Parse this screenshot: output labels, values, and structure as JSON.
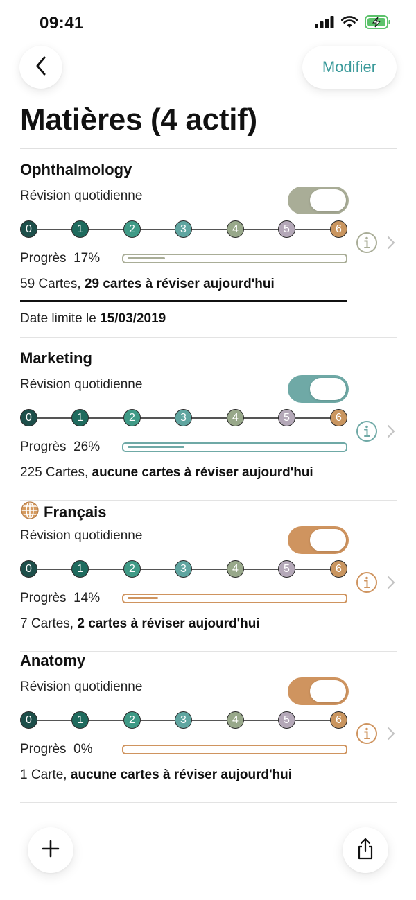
{
  "status_bar": {
    "time": "09:41"
  },
  "header": {
    "edit_label": "Modifier",
    "title": "Matières (4 actif)"
  },
  "labels": {
    "daily_review": "Révision quotidienne",
    "progress_prefix": "Progrès",
    "deadline_prefix": "Date limite le"
  },
  "steps": [
    "0",
    "1",
    "2",
    "3",
    "4",
    "5",
    "6"
  ],
  "step_colors": [
    "#1d4f4a",
    "#1f6b5e",
    "#3f9a86",
    "#5fa5a0",
    "#98a88a",
    "#b4a8b8",
    "#c9955f"
  ],
  "subjects": [
    {
      "name": "Ophthalmology",
      "has_globe": false,
      "accent": "#a9ad97",
      "progress_text": "17%",
      "progress": 0.17,
      "cards_count": "59 Cartes,",
      "cards_due": "29 cartes à réviser aujourd'hui",
      "deadline": "15/03/2019"
    },
    {
      "name": "Marketing",
      "has_globe": false,
      "accent": "#6fa9a6",
      "progress_text": "26%",
      "progress": 0.26,
      "cards_count": "225 Cartes,",
      "cards_due": "aucune cartes à réviser aujourd'hui",
      "deadline": null
    },
    {
      "name": "Français",
      "has_globe": true,
      "accent": "#cf945f",
      "progress_text": "14%",
      "progress": 0.14,
      "cards_count": "7 Cartes,",
      "cards_due": "2 cartes à réviser aujourd'hui",
      "deadline": null
    },
    {
      "name": "Anatomy",
      "has_globe": false,
      "accent": "#cf945f",
      "progress_text": "0%",
      "progress": 0,
      "cards_count": "1 Carte,",
      "cards_due": "aucune cartes à réviser aujourd'hui",
      "deadline": null
    }
  ]
}
